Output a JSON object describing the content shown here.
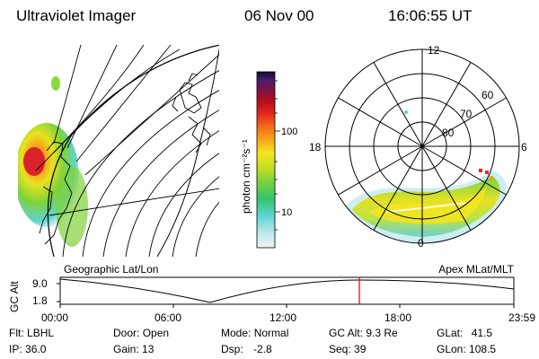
{
  "header": {
    "title": "Ultraviolet Imager",
    "date": "06 Nov 00",
    "time": "16:06:55 UT"
  },
  "colorbar": {
    "unit_label": "photon cm⁻²s⁻¹",
    "tick_labels": [
      "100",
      "10"
    ],
    "gradient_colors": [
      "#f2f2f2",
      "#bfe9ee",
      "#5fd3d3",
      "#35c46a",
      "#7fd23a",
      "#c8df20",
      "#f4e51e",
      "#f6a019",
      "#f06a1d",
      "#e4281e",
      "#b70d1b",
      "#7a1346",
      "#4c1f6e",
      "#0c0c30"
    ]
  },
  "map_left": {
    "label": "Geographic Lat/Lon"
  },
  "polar_right": {
    "label": "Apex MLat/MLT",
    "mlt_labels": {
      "top": "12",
      "left": "18",
      "right": "6",
      "bottom": "0"
    },
    "lat_labels": [
      "60",
      "70",
      "80"
    ]
  },
  "altitude_plot": {
    "axis_label": "GC Alt",
    "y_ticks": [
      "9.0",
      "1.8"
    ],
    "x_ticks": [
      "00:00",
      "06:00",
      "12:00",
      "18:00",
      "23:59"
    ],
    "current_time_marker_color": "#e00000"
  },
  "status": {
    "flt": {
      "label": "Flt:",
      "value": "LBHL"
    },
    "ip": {
      "label": "IP:",
      "value": "36.0"
    },
    "door": {
      "label": "Door:",
      "value": "Open"
    },
    "gain": {
      "label": "Gain:",
      "value": "13"
    },
    "mode": {
      "label": "Mode:",
      "value": "Normal"
    },
    "dsp": {
      "label": "Dsp:",
      "value": "-2.8"
    },
    "gcalt": {
      "label": "GC Alt:",
      "value": "9.3 Re"
    },
    "seq": {
      "label": "Seq:",
      "value": "39"
    },
    "glat": {
      "label": "GLat:",
      "value": "41.5"
    },
    "glon": {
      "label": "GLon:",
      "value": "108.5"
    }
  }
}
